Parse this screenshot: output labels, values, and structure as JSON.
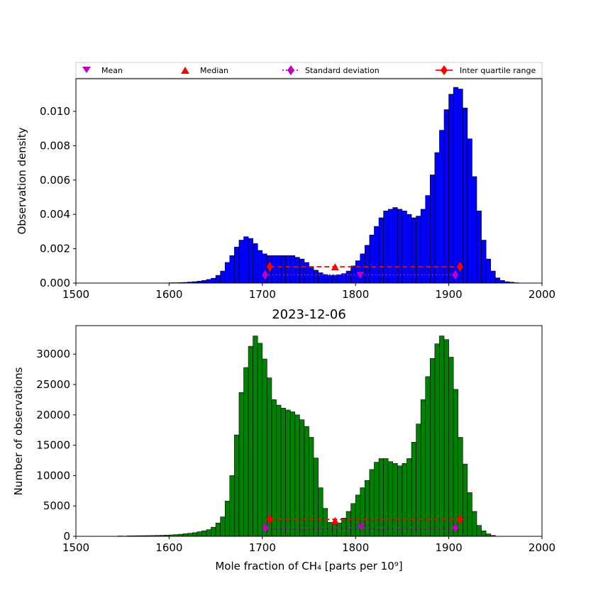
{
  "legend": {
    "entries": [
      {
        "label": "Mean",
        "marker": "triangle-down",
        "color": "#bf00bf"
      },
      {
        "label": "Median",
        "marker": "triangle-up",
        "color": "#ff0000"
      },
      {
        "label": "Standard deviation",
        "marker": "diamond",
        "line": "dotted",
        "color": "#bf00bf"
      },
      {
        "label": "Inter quartile range",
        "marker": "diamond",
        "line": "solid",
        "color": "#ff0000"
      }
    ]
  },
  "chart_data": [
    {
      "type": "bar",
      "title": "",
      "xlabel": "",
      "ylabel": "Observation density",
      "bar_color": "#0000ff",
      "xlim": [
        1500,
        2000
      ],
      "ylim": [
        0,
        0.0119
      ],
      "xticks": [
        "1500",
        "1600",
        "1700",
        "1800",
        "1900",
        "2000"
      ],
      "yticks": [
        "0.000",
        "0.002",
        "0.004",
        "0.006",
        "0.008",
        "0.010"
      ],
      "bin_start": 1600,
      "bin_width": 5,
      "values": [
        2e-05,
        2e-05,
        3e-05,
        4e-05,
        6e-05,
        8e-05,
        0.00011,
        0.00015,
        0.00021,
        0.00028,
        0.00045,
        0.0007,
        0.0012,
        0.0016,
        0.0021,
        0.0025,
        0.0027,
        0.0026,
        0.0023,
        0.0019,
        0.0017,
        0.0016,
        0.0016,
        0.0016,
        0.0016,
        0.0016,
        0.0016,
        0.0015,
        0.0014,
        0.0012,
        0.00095,
        0.00075,
        0.0006,
        0.0005,
        0.00045,
        0.00045,
        0.00048,
        0.00055,
        0.0007,
        0.001,
        0.0013,
        0.0017,
        0.0022,
        0.0028,
        0.0033,
        0.0038,
        0.0042,
        0.0043,
        0.0044,
        0.0043,
        0.0042,
        0.004,
        0.0038,
        0.0039,
        0.0043,
        0.0051,
        0.0063,
        0.0076,
        0.0089,
        0.0101,
        0.011,
        0.0114,
        0.0113,
        0.0102,
        0.0084,
        0.0062,
        0.0042,
        0.0025,
        0.0014,
        0.0007,
        0.0003,
        0.00015,
        8e-05,
        5e-05,
        2e-05
      ],
      "markers": {
        "mean": {
          "x": 1805,
          "y": 0.00045
        },
        "median": {
          "x": 1778,
          "y": 0.00095
        },
        "std_dev": {
          "x_range": [
            1703,
            1907
          ],
          "y": 0.00048
        },
        "iqr": {
          "x_range": [
            1708,
            1912
          ],
          "y": 0.00095
        }
      }
    },
    {
      "type": "bar",
      "title": "2023-12-06",
      "xlabel": "Mole fraction of CH₄ [parts per 10⁹]",
      "ylabel": "Number of observations",
      "bar_color": "#008000",
      "xlim": [
        1500,
        2000
      ],
      "ylim": [
        0,
        34700
      ],
      "xticks": [
        "1500",
        "1600",
        "1700",
        "1800",
        "1900",
        "2000"
      ],
      "yticks": [
        "0",
        "5000",
        "10000",
        "15000",
        "20000",
        "25000",
        "30000"
      ],
      "bin_start": 1545,
      "bin_width": 5,
      "values": [
        60,
        40,
        80,
        90,
        100,
        110,
        120,
        130,
        150,
        170,
        200,
        230,
        280,
        340,
        420,
        500,
        600,
        750,
        900,
        1100,
        1500,
        2200,
        3200,
        5800,
        10000,
        16700,
        23700,
        27800,
        31300,
        33000,
        31800,
        29200,
        26100,
        22500,
        21600,
        21100,
        20800,
        20500,
        20000,
        19200,
        18100,
        16300,
        12900,
        8000,
        4600,
        2300,
        2000,
        2200,
        3000,
        4100,
        5400,
        6800,
        8000,
        9200,
        11000,
        12200,
        12800,
        12800,
        12300,
        12000,
        11600,
        12000,
        12800,
        15500,
        18500,
        22500,
        26300,
        29300,
        31700,
        33000,
        32400,
        29500,
        24200,
        16300,
        11900,
        7200,
        4100,
        1800,
        900,
        400,
        150
      ],
      "markers": {
        "mean": {
          "x": 1806,
          "y": 1500
        },
        "median": {
          "x": 1778,
          "y": 2600
        },
        "std_dev": {
          "x_range": [
            1703,
            1907
          ],
          "y": 1400
        },
        "iqr": {
          "x_range": [
            1708,
            1912
          ],
          "y": 2800
        }
      }
    }
  ]
}
